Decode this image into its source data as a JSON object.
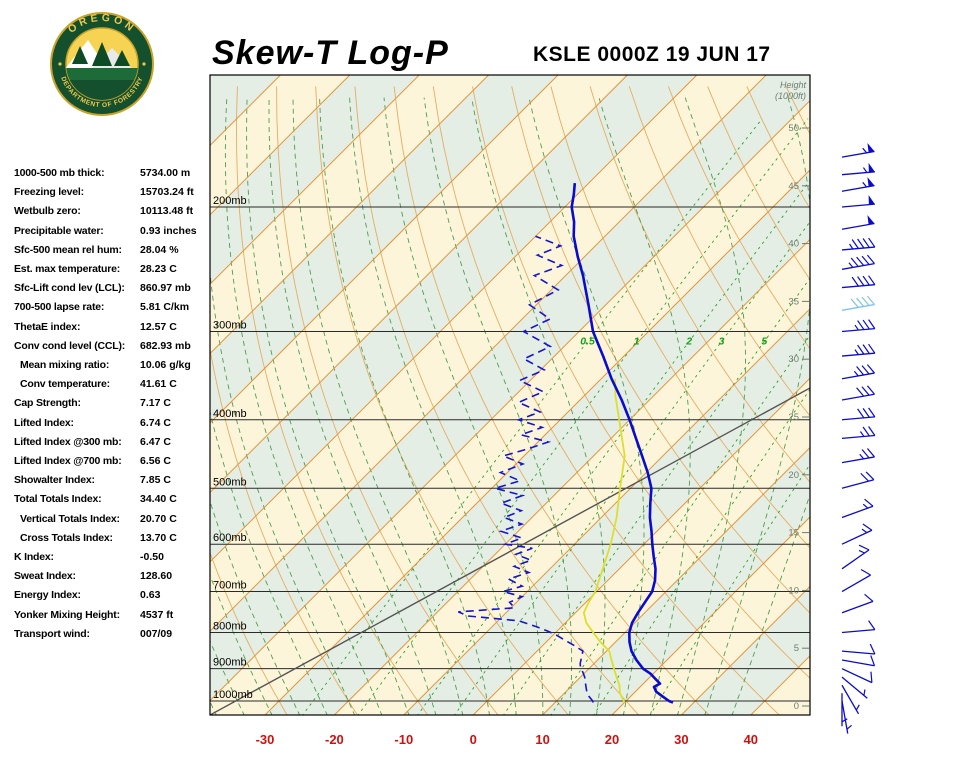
{
  "header": {
    "title": "Skew-T Log-P",
    "station_line": "KSLE 0000Z 19 JUN 17"
  },
  "logo": {
    "top_text": "OREGON",
    "bottom_text": "DEPARTMENT OF FORESTRY"
  },
  "indices": [
    {
      "label": "1000-500 mb thick:",
      "value": "5734.00 m",
      "indent": false
    },
    {
      "label": "Freezing level:",
      "value": "15703.24 ft",
      "indent": false
    },
    {
      "label": "Wetbulb zero:",
      "value": "10113.48 ft",
      "indent": false
    },
    {
      "label": "Precipitable water:",
      "value": "0.93 inches",
      "indent": false
    },
    {
      "label": "Sfc-500 mean rel hum:",
      "value": "28.04 %",
      "indent": false
    },
    {
      "label": "Est. max temperature:",
      "value": "28.23 C",
      "indent": false
    },
    {
      "label": "Sfc-Lift cond lev (LCL):",
      "value": "860.97 mb",
      "indent": false
    },
    {
      "label": "700-500 lapse rate:",
      "value": "5.81 C/km",
      "indent": false
    },
    {
      "label": "ThetaE index:",
      "value": "12.57 C",
      "indent": false
    },
    {
      "label": "Conv cond level (CCL):",
      "value": "682.93 mb",
      "indent": false
    },
    {
      "label": "Mean mixing ratio:",
      "value": "10.06 g/kg",
      "indent": true
    },
    {
      "label": "Conv temperature:",
      "value": "41.61 C",
      "indent": true
    },
    {
      "label": "Cap Strength:",
      "value": "7.17 C",
      "indent": false
    },
    {
      "label": "Lifted Index:",
      "value": "6.74 C",
      "indent": false
    },
    {
      "label": "Lifted Index @300 mb:",
      "value": "6.47 C",
      "indent": false
    },
    {
      "label": "Lifted Index @700 mb:",
      "value": "6.56 C",
      "indent": false
    },
    {
      "label": "Showalter Index:",
      "value": "7.85 C",
      "indent": false
    },
    {
      "label": "Total Totals Index:",
      "value": "34.40 C",
      "indent": false
    },
    {
      "label": "Vertical Totals Index:",
      "value": "20.70 C",
      "indent": true
    },
    {
      "label": "Cross Totals Index:",
      "value": "13.70 C",
      "indent": true
    },
    {
      "label": "K Index:",
      "value": "-0.50",
      "indent": false
    },
    {
      "label": "Sweat Index:",
      "value": "128.60",
      "indent": false
    },
    {
      "label": "Energy Index:",
      "value": "0.63",
      "indent": false
    },
    {
      "label": "Yonker Mixing Height:",
      "value": "4537 ft",
      "indent": false
    },
    {
      "label": "Transport wind:",
      "value": "007/09",
      "indent": false
    }
  ],
  "chart_data": {
    "type": "skewt-log-p",
    "pressure_levels": [
      {
        "p": 200,
        "label": "200mb"
      },
      {
        "p": 300,
        "label": "300mb"
      },
      {
        "p": 400,
        "label": "400mb"
      },
      {
        "p": 500,
        "label": "500mb"
      },
      {
        "p": 600,
        "label": "600mb"
      },
      {
        "p": 700,
        "label": "700mb"
      },
      {
        "p": 800,
        "label": "800mb"
      },
      {
        "p": 900,
        "label": "900mb"
      },
      {
        "p": 1000,
        "label": "1000mb"
      }
    ],
    "temp_ticks": [
      -30,
      -20,
      -10,
      0,
      10,
      20,
      30,
      40
    ],
    "height_axis": {
      "title_lines": [
        "Height",
        "(1000ft)"
      ],
      "ticks": [
        0,
        5,
        10,
        15,
        20,
        25,
        30,
        35,
        40,
        45,
        50
      ],
      "units": "1000ft"
    },
    "isotherms_c": [
      -140,
      -130,
      -120,
      -110,
      -100,
      -90,
      -80,
      -70,
      -60,
      -50,
      -40,
      -30,
      -20,
      -10,
      0,
      10,
      20,
      30,
      40,
      50
    ],
    "dry_adiabats_theta_c": [
      -30,
      -20,
      -10,
      0,
      10,
      20,
      30,
      40,
      50,
      60,
      70,
      80,
      90,
      100,
      110,
      120,
      130,
      140,
      150
    ],
    "moist_adiabats_thetaw_c": [
      -40,
      -36,
      -32,
      -28,
      -24,
      -20,
      -16,
      -12,
      -8,
      -4,
      0,
      4,
      8,
      12,
      16,
      20,
      24,
      28,
      32,
      36
    ],
    "mixing_ratio_lines_gkg": [
      0.5,
      1,
      2,
      3,
      5,
      8,
      12,
      20
    ],
    "mixing_label_pressure": 310,
    "temperature_profile": [
      [
        1005,
        27.0
      ],
      [
        1000,
        26.2
      ],
      [
        985,
        24.6
      ],
      [
        970,
        23.0
      ],
      [
        955,
        22.0
      ],
      [
        945,
        22.4
      ],
      [
        930,
        21.0
      ],
      [
        915,
        19.6
      ],
      [
        900,
        17.8
      ],
      [
        875,
        15.6
      ],
      [
        850,
        13.6
      ],
      [
        825,
        12.0
      ],
      [
        800,
        10.6
      ],
      [
        775,
        9.6
      ],
      [
        750,
        9.0
      ],
      [
        725,
        8.5
      ],
      [
        700,
        8.0
      ],
      [
        675,
        6.8
      ],
      [
        650,
        5.2
      ],
      [
        625,
        3.2
      ],
      [
        600,
        1.2
      ],
      [
        575,
        -0.8
      ],
      [
        550,
        -3.0
      ],
      [
        525,
        -5.0
      ],
      [
        500,
        -7.0
      ],
      [
        475,
        -9.8
      ],
      [
        450,
        -13.0
      ],
      [
        425,
        -16.4
      ],
      [
        400,
        -20.0
      ],
      [
        375,
        -24.0
      ],
      [
        350,
        -28.5
      ],
      [
        325,
        -33.0
      ],
      [
        300,
        -38.0
      ],
      [
        275,
        -42.5
      ],
      [
        250,
        -47.5
      ],
      [
        235,
        -51.0
      ],
      [
        220,
        -54.5
      ],
      [
        210,
        -56.5
      ],
      [
        200,
        -59.0
      ],
      [
        192,
        -60.5
      ],
      [
        185,
        -62.0
      ]
    ],
    "dewpoint_profile": [
      [
        1005,
        15.5
      ],
      [
        1000,
        15.2
      ],
      [
        985,
        14.0
      ],
      [
        970,
        13.0
      ],
      [
        955,
        12.2
      ],
      [
        940,
        11.4
      ],
      [
        925,
        10.6
      ],
      [
        910,
        9.6
      ],
      [
        900,
        8.8
      ],
      [
        885,
        8.0
      ],
      [
        870,
        7.4
      ],
      [
        850,
        6.6
      ],
      [
        835,
        4.6
      ],
      [
        820,
        2.4
      ],
      [
        805,
        0.2
      ],
      [
        795,
        -1.6
      ],
      [
        785,
        -3.6
      ],
      [
        770,
        -7.0
      ],
      [
        758,
        -15.0
      ],
      [
        748,
        -17.0
      ],
      [
        738,
        -9.5
      ],
      [
        725,
        -11.0
      ],
      [
        712,
        -10.0
      ],
      [
        700,
        -13.5
      ],
      [
        688,
        -11.5
      ],
      [
        672,
        -14.5
      ],
      [
        658,
        -12.5
      ],
      [
        645,
        -15.5
      ],
      [
        632,
        -14.0
      ],
      [
        620,
        -17.0
      ],
      [
        608,
        -15.5
      ],
      [
        600,
        -20.0
      ],
      [
        588,
        -18.5
      ],
      [
        575,
        -22.5
      ],
      [
        562,
        -20.5
      ],
      [
        550,
        -24.0
      ],
      [
        538,
        -22.5
      ],
      [
        525,
        -26.5
      ],
      [
        512,
        -24.5
      ],
      [
        500,
        -29.5
      ],
      [
        488,
        -27.0
      ],
      [
        475,
        -31.0
      ],
      [
        462,
        -29.0
      ],
      [
        450,
        -33.0
      ],
      [
        440,
        -30.5
      ],
      [
        430,
        -28.5
      ],
      [
        420,
        -33.5
      ],
      [
        410,
        -31.5
      ],
      [
        400,
        -36.0
      ],
      [
        390,
        -34.0
      ],
      [
        378,
        -38.5
      ],
      [
        365,
        -36.5
      ],
      [
        352,
        -41.5
      ],
      [
        340,
        -39.5
      ],
      [
        328,
        -44.0
      ],
      [
        315,
        -42.0
      ],
      [
        300,
        -48.0
      ],
      [
        288,
        -46.0
      ],
      [
        275,
        -51.0
      ],
      [
        262,
        -49.0
      ],
      [
        250,
        -54.5
      ],
      [
        242,
        -52.0
      ],
      [
        234,
        -57.0
      ],
      [
        227,
        -55.0
      ],
      [
        220,
        -60.0
      ]
    ],
    "wetbulb_profile": [
      [
        1005,
        20.0
      ],
      [
        975,
        18.0
      ],
      [
        950,
        16.8
      ],
      [
        925,
        15.2
      ],
      [
        900,
        13.6
      ],
      [
        875,
        12.0
      ],
      [
        850,
        10.4
      ],
      [
        825,
        7.8
      ],
      [
        800,
        5.4
      ],
      [
        775,
        3.0
      ],
      [
        750,
        1.2
      ],
      [
        725,
        0.4
      ],
      [
        700,
        -0.2
      ],
      [
        650,
        -2.4
      ],
      [
        600,
        -4.8
      ],
      [
        550,
        -7.8
      ],
      [
        500,
        -11.5
      ],
      [
        450,
        -15.5
      ],
      [
        400,
        -21.5
      ],
      [
        370,
        -25.5
      ],
      [
        350,
        -28.0
      ]
    ],
    "winds": [
      [
        1000,
        170,
        5,
        0
      ],
      [
        975,
        180,
        5,
        0
      ],
      [
        950,
        150,
        8,
        0
      ],
      [
        925,
        130,
        8,
        0
      ],
      [
        900,
        115,
        10,
        0
      ],
      [
        875,
        100,
        10,
        0
      ],
      [
        850,
        95,
        12,
        0
      ],
      [
        800,
        85,
        10,
        0
      ],
      [
        750,
        70,
        12,
        0
      ],
      [
        700,
        60,
        12,
        0
      ],
      [
        650,
        55,
        15,
        0
      ],
      [
        600,
        65,
        15,
        0
      ],
      [
        550,
        70,
        18,
        0
      ],
      [
        500,
        75,
        22,
        0
      ],
      [
        460,
        80,
        25,
        0
      ],
      [
        425,
        85,
        28,
        0
      ],
      [
        400,
        85,
        30,
        0
      ],
      [
        375,
        80,
        32,
        0
      ],
      [
        350,
        80,
        35,
        0
      ],
      [
        325,
        85,
        35,
        0
      ],
      [
        300,
        85,
        38,
        0
      ],
      [
        280,
        80,
        40,
        1
      ],
      [
        260,
        85,
        42,
        0
      ],
      [
        245,
        80,
        45,
        0
      ],
      [
        230,
        85,
        48,
        0
      ],
      [
        215,
        80,
        50,
        0
      ],
      [
        200,
        85,
        52,
        0
      ],
      [
        190,
        80,
        55,
        0
      ],
      [
        180,
        85,
        55,
        0
      ],
      [
        170,
        80,
        58,
        0
      ]
    ],
    "colors": {
      "temperature_line": "#0b0bd0",
      "dewpoint_line": "#1515cc",
      "wetbulb_line": "#dede2e",
      "isotherm": "#e2953c",
      "dry_adiabat": "#e4ad62",
      "moist_adiabat": "#4e9e50",
      "mixing_ratio": "#2aa02a",
      "mixing_label": "#18a018",
      "band_a": "#fcf5d9",
      "band_b": "#e4eee4",
      "axis_red": "#cc1111",
      "height_gray": "#6e7e6e",
      "grid": "#2a2a2a",
      "frame": "#000000",
      "reference": "#555555",
      "barb": "#0b0bd0",
      "barb_light": "#7fc4e8"
    }
  }
}
